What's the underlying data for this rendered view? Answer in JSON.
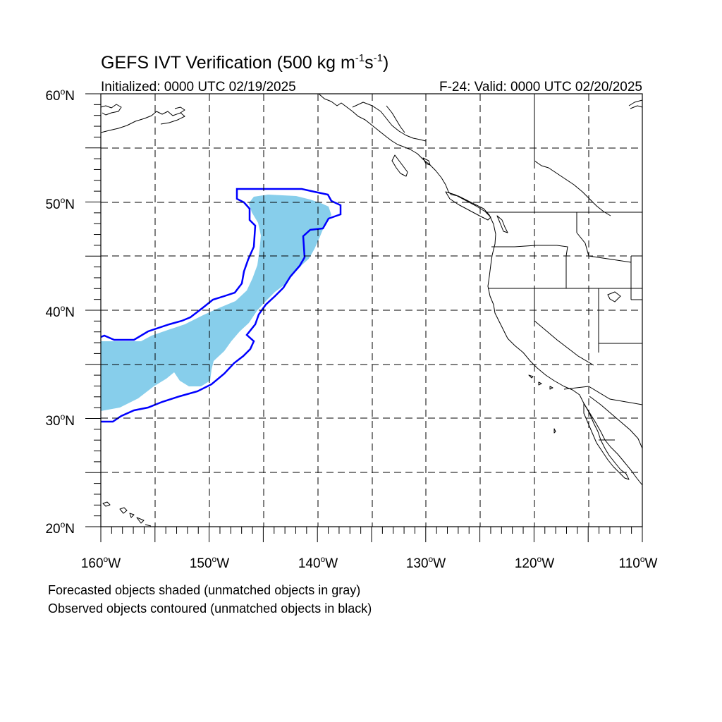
{
  "title": {
    "main": "GEFS IVT Verification (500 kg m",
    "sup1": "-1",
    "mid": "s",
    "sup2": "-1",
    "close": ")"
  },
  "subtitle_left": "Initialized: 0000 UTC 02/19/2025",
  "subtitle_right": "F-24: Valid: 0000 UTC 02/20/2025",
  "lat_labels": [
    "60",
    "50",
    "40",
    "30",
    "20"
  ],
  "lat_suffix": "N",
  "lon_labels": [
    "160",
    "150",
    "140",
    "130",
    "120",
    "110"
  ],
  "lon_suffix": "W",
  "degree_symbol": "o",
  "caption_1": "Forecasted objects shaded (unmatched objects in gray)",
  "caption_2": "Observed objects contoured (unmatched objects in black)",
  "map": {
    "lon_range": [
      -160,
      -110
    ],
    "lat_range": [
      20,
      60
    ],
    "grid_style": "dashed",
    "colors": {
      "forecast_fill": "#87ceeb",
      "observed_contour": "#0000ff",
      "coastline": "#000000",
      "grid": "#000000"
    }
  }
}
